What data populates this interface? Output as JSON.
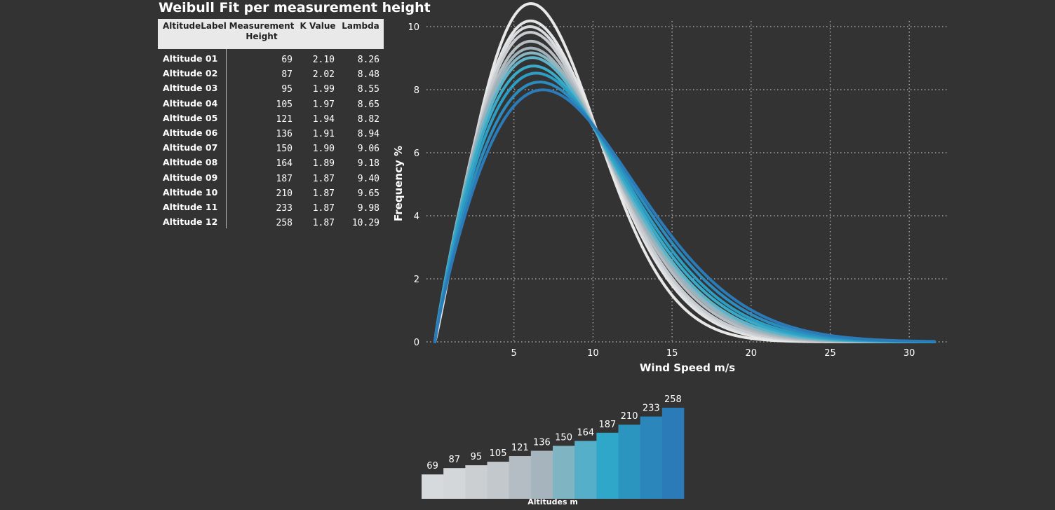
{
  "title": "Weibull Fit per measurement height",
  "table": {
    "headers": [
      "AltitudeLabel",
      "Measurement\nHeight",
      "K Value",
      "Lambda"
    ],
    "rows": [
      {
        "label": "Altitude 01",
        "height": "69",
        "k": "2.10",
        "lambda": "8.26"
      },
      {
        "label": "Altitude 02",
        "height": "87",
        "k": "2.02",
        "lambda": "8.48"
      },
      {
        "label": "Altitude 03",
        "height": "95",
        "k": "1.99",
        "lambda": "8.55"
      },
      {
        "label": "Altitude 04",
        "height": "105",
        "k": "1.97",
        "lambda": "8.65"
      },
      {
        "label": "Altitude 05",
        "height": "121",
        "k": "1.94",
        "lambda": "8.82"
      },
      {
        "label": "Altitude 06",
        "height": "136",
        "k": "1.91",
        "lambda": "8.94"
      },
      {
        "label": "Altitude 07",
        "height": "150",
        "k": "1.90",
        "lambda": "9.06"
      },
      {
        "label": "Altitude 08",
        "height": "164",
        "k": "1.89",
        "lambda": "9.18"
      },
      {
        "label": "Altitude 09",
        "height": "187",
        "k": "1.87",
        "lambda": "9.40"
      },
      {
        "label": "Altitude 10",
        "height": "210",
        "k": "1.87",
        "lambda": "9.65"
      },
      {
        "label": "Altitude 11",
        "height": "233",
        "k": "1.87",
        "lambda": "9.98"
      },
      {
        "label": "Altitude 12",
        "height": "258",
        "k": "1.87",
        "lambda": "10.29"
      }
    ]
  },
  "chart_data": [
    {
      "type": "line",
      "title": "",
      "xlabel": "Wind Speed m/s",
      "ylabel": "Frequency %",
      "xlim": [
        0,
        32
      ],
      "ylim": [
        0,
        10
      ],
      "xticks": [
        5,
        10,
        15,
        20,
        25,
        30
      ],
      "yticks": [
        0,
        2,
        4,
        6,
        8,
        10
      ],
      "grid": true,
      "gridstyle": "dotted",
      "curve": "weibull_pdf_percent",
      "series": [
        {
          "k": 2.1,
          "lambda": 8.26,
          "color": "#e8e8e8"
        },
        {
          "k": 2.02,
          "lambda": 8.48,
          "color": "#e4e5e6"
        },
        {
          "k": 1.99,
          "lambda": 8.55,
          "color": "#d8dbdd"
        },
        {
          "k": 1.97,
          "lambda": 8.65,
          "color": "#c8ccd0"
        },
        {
          "k": 1.94,
          "lambda": 8.82,
          "color": "#b5bcc2"
        },
        {
          "k": 1.91,
          "lambda": 8.94,
          "color": "#a2b2ba"
        },
        {
          "k": 1.9,
          "lambda": 9.06,
          "color": "#88b6c3"
        },
        {
          "k": 1.89,
          "lambda": 9.18,
          "color": "#5fb3c9"
        },
        {
          "k": 1.87,
          "lambda": 9.4,
          "color": "#3aaac9"
        },
        {
          "k": 1.87,
          "lambda": 9.65,
          "color": "#2d9dc4"
        },
        {
          "k": 1.87,
          "lambda": 9.98,
          "color": "#2d8bbe"
        },
        {
          "k": 1.87,
          "lambda": 10.29,
          "color": "#2b7bb8"
        }
      ]
    },
    {
      "type": "bar",
      "xlabel": "Altitudes m",
      "categories": [
        "69",
        "87",
        "95",
        "105",
        "121",
        "136",
        "150",
        "164",
        "187",
        "210",
        "233",
        "258"
      ],
      "values": [
        69,
        87,
        95,
        105,
        121,
        136,
        150,
        164,
        187,
        210,
        233,
        258
      ],
      "ylim": [
        0,
        258
      ],
      "colors": [
        "#d7dadc",
        "#d3d7da",
        "#cbcfd2",
        "#c2c8cc",
        "#b4bdc3",
        "#a6b5bd",
        "#7fb4c2",
        "#55afc9",
        "#2fa7c9",
        "#2b95c0",
        "#2b87bb",
        "#2a7bb8"
      ]
    }
  ]
}
